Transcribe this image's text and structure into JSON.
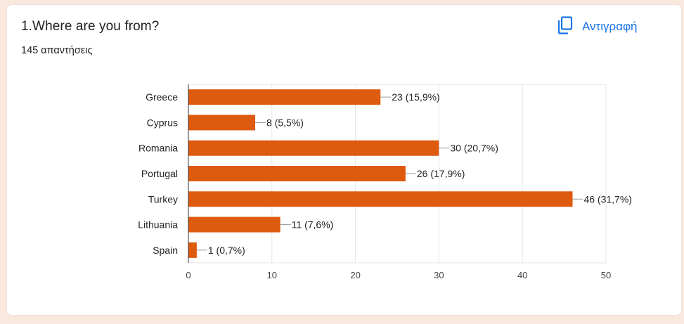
{
  "question": {
    "title": "1.Where are you from?",
    "responses": "145 απαντήσεις"
  },
  "copy_button": {
    "label": "Αντιγραφή",
    "icon": "copy-icon",
    "color": "#1a73e8"
  },
  "chart_data": {
    "type": "bar",
    "orientation": "horizontal",
    "categories": [
      "Greece",
      "Cyprus",
      "Romania",
      "Portugal",
      "Turkey",
      "Lithuania",
      "Spain"
    ],
    "values": [
      23,
      8,
      30,
      26,
      46,
      11,
      1
    ],
    "data_labels": [
      "23 (15,9%)",
      "8 (5,5%)",
      "30 (20,7%)",
      "26 (17,9%)",
      "46 (31,7%)",
      "11 (7,6%)",
      "1 (0,7%)"
    ],
    "xlim": [
      0,
      50
    ],
    "xticks": [
      0,
      10,
      20,
      30,
      40,
      50
    ],
    "bar_color": "#dd5a0e",
    "grid": true,
    "title": "",
    "xlabel": "",
    "ylabel": ""
  }
}
